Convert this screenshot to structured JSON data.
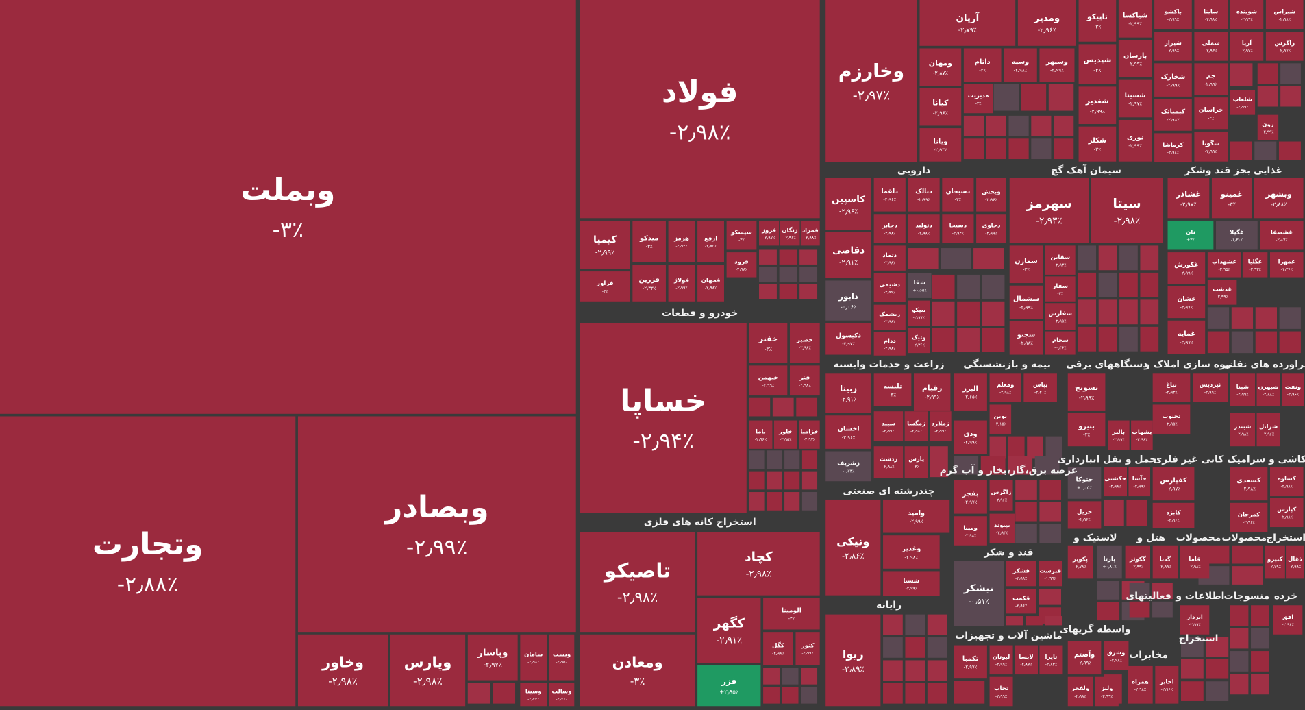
{
  "tile_color": "#9b2a3e",
  "filler_colors": [
    "#9b2a3e",
    "#a03045",
    "#5a4852"
  ],
  "sectors": [
    "خودرو و قطعات",
    "استخراج کانه های فلزی",
    "دارویی",
    "سیمان آهک گچ",
    "غذایی بجز قند وشکر",
    "زراعت و خدمات وابسته",
    "بیمه و بازنشستگی",
    "دستگاههای برقی",
    "انبوه سازی املاک و",
    "فراورده های نفتی",
    "عرضه برق،گاز،بخار و آب گرم",
    "حمل و نقل انبارداری",
    "کانی غیر فلزی",
    "کاشی و سرامیک",
    "چندرشته ای صنعتی",
    "قند و شکر",
    "لاستیک و",
    "هتل و",
    "محصولات",
    "محصولات",
    "استخراج",
    "رایانه",
    "فعالیتهای",
    "اطلاعات و",
    "منسوجات",
    "خرده",
    "واسطه گریهای",
    "ماشین آلات و تجهیزات",
    "استخراج",
    "مخابرات"
  ],
  "stocks": [
    {
      "name": "وبملت",
      "change": "-۳٪"
    },
    {
      "name": "وتجارت",
      "change": "-۲٫۸۸٪"
    },
    {
      "name": "وبصادر",
      "change": "-۲٫۹۹٪"
    },
    {
      "name": "وخاور",
      "change": "-۲٫۹۸٪"
    },
    {
      "name": "وپارس",
      "change": "-۲٫۹۸٪"
    },
    {
      "name": "وپاسار",
      "change": "-۲٫۹۷٪"
    },
    {
      "name": "سامان",
      "change": "-۲٫۹۸٪"
    },
    {
      "name": "ویست",
      "change": "-۲٫۹۵٪"
    },
    {
      "name": "وسینا",
      "change": "-۲٫۷۴٪"
    },
    {
      "name": "وسالت",
      "change": "-۲٫۷۶٪"
    },
    {
      "name": "فولاد",
      "change": "-۲٫۹۸٪"
    },
    {
      "name": "کیمیا",
      "change": "-۲٫۹۹٪"
    },
    {
      "name": "فرآور",
      "change": "-۳٪"
    },
    {
      "name": "میدکو",
      "change": "-۳٪"
    },
    {
      "name": "فزرین",
      "change": "-۲٫۳۳٪"
    },
    {
      "name": "هرمز",
      "change": "-۲٫۹۴٪"
    },
    {
      "name": "فولاژ",
      "change": "-۲٫۹۹٪"
    },
    {
      "name": "ارفع",
      "change": "-۲٫۷۵٪"
    },
    {
      "name": "فجهان",
      "change": "-۲٫۹۸٪"
    },
    {
      "name": "سیسکو",
      "change": "-۳٪"
    },
    {
      "name": "فرود",
      "change": "-۲٫۹۸٪"
    },
    {
      "name": "فروز",
      "change": "-۲٫۹۷٪"
    },
    {
      "name": "زنگان",
      "change": "-۲٫۹۶٪"
    },
    {
      "name": "فمراد",
      "change": "-۲٫۹۸٪"
    },
    {
      "name": "خساپا",
      "change": "-۲٫۹۴٪"
    },
    {
      "name": "خفنر",
      "change": "-۳٪"
    },
    {
      "name": "خصیر",
      "change": "-۲٫۹۸٪"
    },
    {
      "name": "خبهمن",
      "change": "-۲٫۹۹٪"
    },
    {
      "name": "فنر",
      "change": "-۲٫۹۸٪"
    },
    {
      "name": "ناما",
      "change": "-۲٫۹۶٪"
    },
    {
      "name": "خاور",
      "change": "-۲٫۹۵٪"
    },
    {
      "name": "خزامیا",
      "change": "-۲٫۹۷٪"
    },
    {
      "name": "تاصیکو",
      "change": "-۲٫۹۸٪"
    },
    {
      "name": "ومعادن",
      "change": "-۳٪"
    },
    {
      "name": "کچاد",
      "change": "-۲٫۹۸٪"
    },
    {
      "name": "کگهر",
      "change": "-۲٫۹۱٪"
    },
    {
      "name": "فزر",
      "change": "+۲٫۹۵٪",
      "color": "#1f9a62"
    },
    {
      "name": "آلومینا",
      "change": "-۳٪"
    },
    {
      "name": "کگل",
      "change": "-۲٫۹۸٪"
    },
    {
      "name": "کنور",
      "change": "-۲٫۹۹٪"
    },
    {
      "name": "وخارزم",
      "change": "-۲٫۹۷٪"
    },
    {
      "name": "آریان",
      "change": "-۲٫۷۹٪"
    },
    {
      "name": "ومدیر",
      "change": "-۲٫۹۶٪"
    },
    {
      "name": "ومهان",
      "change": "-۲٫۸۷٪"
    },
    {
      "name": "داتام",
      "change": "-۳٪"
    },
    {
      "name": "وسپه",
      "change": "-۲٫۹۸٪"
    },
    {
      "name": "وسپهر",
      "change": "-۲٫۹۹٪"
    },
    {
      "name": "کیانا",
      "change": "-۲٫۹۶٪"
    },
    {
      "name": "مدیریت",
      "change": "-۳٪"
    },
    {
      "name": "ویانا",
      "change": "-۲٫۹۳٪"
    },
    {
      "name": "تاپیکو",
      "change": "-۳٪"
    },
    {
      "name": "شپاکسا",
      "change": "-۲٫۹۹٪"
    },
    {
      "name": "شپدیس",
      "change": "-۳٪"
    },
    {
      "name": "پارسان",
      "change": "-۲٫۹۹٪"
    },
    {
      "name": "شغدیر",
      "change": "-۲٫۹۹٪"
    },
    {
      "name": "شسینا",
      "change": "-۲٫۹۷٪"
    },
    {
      "name": "شکلر",
      "change": "-۳٪"
    },
    {
      "name": "نوری",
      "change": "-۲٫۹۹٪"
    },
    {
      "name": "پاکشو",
      "change": "-۲٫۹۹٪"
    },
    {
      "name": "ساینا",
      "change": "-۲٫۹۸٪"
    },
    {
      "name": "شوینده",
      "change": "-۲٫۹۹٪"
    },
    {
      "name": "شیراس",
      "change": "-۲٫۹۸٪"
    },
    {
      "name": "شیراز",
      "change": "-۲٫۹۹٪"
    },
    {
      "name": "شملی",
      "change": "-۲٫۹۳٪"
    },
    {
      "name": "آریا",
      "change": "-۲٫۹۷٪"
    },
    {
      "name": "زاگرس",
      "change": "-۲٫۹۷٪"
    },
    {
      "name": "شخارک",
      "change": "-۲٫۹۹٪"
    },
    {
      "name": "جم",
      "change": "-۲٫۹۹٪"
    },
    {
      "name": "کیمیاتک",
      "change": "-۲٫۹۸٪"
    },
    {
      "name": "خراسان",
      "change": "-۳٪"
    },
    {
      "name": "شلعاب",
      "change": "-۲٫۹۹٪"
    },
    {
      "name": "کرماشا",
      "change": "-۲٫۹۸٪"
    },
    {
      "name": "شگویا",
      "change": "-۲٫۹۹٪"
    },
    {
      "name": "رون",
      "change": "-۲٫۹۹٪"
    },
    {
      "name": "کاسپین",
      "change": "-۲٫۹۶٪"
    },
    {
      "name": "دلقما",
      "change": "-۲٫۹۶٪"
    },
    {
      "name": "دبالک",
      "change": "-۲٫۹۹٪"
    },
    {
      "name": "دسبحان",
      "change": "-۳٪"
    },
    {
      "name": "وپخش",
      "change": "-۲٫۹۶٪"
    },
    {
      "name": "دقاضی",
      "change": "-۲٫۹۱٪"
    },
    {
      "name": "دجابر",
      "change": "-۲٫۹۸٪"
    },
    {
      "name": "دتولید",
      "change": "-۲٫۹۸٪"
    },
    {
      "name": "دسبحا",
      "change": "-۲٫۹۴٪"
    },
    {
      "name": "دحاوی",
      "change": "-۲٫۹۹٪"
    },
    {
      "name": "دتماد",
      "change": "-۲٫۹۸٪"
    },
    {
      "name": "دشیمی",
      "change": "-۲٫۹۹٪"
    },
    {
      "name": "شفا",
      "change": "+۰٫۶۵٪",
      "color": "#5a4852"
    },
    {
      "name": "دابور",
      "change": "-۰٫۰۶٪",
      "color": "#5a4852"
    },
    {
      "name": "ریشمک",
      "change": "-۲٫۹۸٪"
    },
    {
      "name": "دکیسول",
      "change": "-۲٫۹۷٪"
    },
    {
      "name": "ددام",
      "change": "-۲٫۹۸٪"
    },
    {
      "name": "بیپکو",
      "change": "-۲٫۹۷٪"
    },
    {
      "name": "وتیک",
      "change": "-۲٫۳۶٪"
    },
    {
      "name": "سهرمز",
      "change": "-۲٫۹۳٪"
    },
    {
      "name": "سیتا",
      "change": "-۲٫۹۸٪"
    },
    {
      "name": "سمازن",
      "change": "-۳٪"
    },
    {
      "name": "سقاین",
      "change": "-۲٫۹۳٪"
    },
    {
      "name": "سفار",
      "change": "-۳٪"
    },
    {
      "name": "سشمال",
      "change": "-۲٫۹۹٪"
    },
    {
      "name": "سفارس",
      "change": "-۲٫۹۵٪"
    },
    {
      "name": "سجنو",
      "change": "-۲٫۹۸٪"
    },
    {
      "name": "سجام",
      "change": "-۰٫۴۶٪"
    },
    {
      "name": "غشاذر",
      "change": "-۲٫۹۷٪"
    },
    {
      "name": "غمینو",
      "change": "-۳٪"
    },
    {
      "name": "وبشهر",
      "change": "-۲٫۸۸٪"
    },
    {
      "name": "نان",
      "change": "+۳٪",
      "color": "#1f9a62"
    },
    {
      "name": "غگیلا",
      "change": "-۱٫۳۰٪",
      "color": "#5a4852"
    },
    {
      "name": "غشصفا",
      "change": "-۲٫۸۷٪"
    },
    {
      "name": "غکورش",
      "change": "-۲٫۹۹٪"
    },
    {
      "name": "غشهداب",
      "change": "-۲٫۹۵٪"
    },
    {
      "name": "غگلپا",
      "change": "-۲٫۹۳٪"
    },
    {
      "name": "غمهرا",
      "change": "-۱٫۳۶٪"
    },
    {
      "name": "غشان",
      "change": "-۲٫۹۷٪"
    },
    {
      "name": "غدشت",
      "change": "-۲٫۹۹٪"
    },
    {
      "name": "غمایه",
      "change": "-۲٫۹۷٪"
    },
    {
      "name": "زبینا",
      "change": "-۲٫۹۱٪"
    },
    {
      "name": "تلیسه",
      "change": "-۳٪"
    },
    {
      "name": "زقیام",
      "change": "-۲٫۹۹٪"
    },
    {
      "name": "اخشان",
      "change": "-۲٫۹۶٪"
    },
    {
      "name": "سپید",
      "change": "-۲٫۹۹٪"
    },
    {
      "name": "زمگسا",
      "change": "-۲٫۹۸٪"
    },
    {
      "name": "زملارد",
      "change": "-۲٫۹۹٪"
    },
    {
      "name": "زشریف",
      "change": "-۰٫۷۳٪",
      "color": "#5a4852"
    },
    {
      "name": "زدشت",
      "change": "-۲٫۹۸٪"
    },
    {
      "name": "پارس",
      "change": "-۳٪"
    },
    {
      "name": "البرز",
      "change": "-۲٫۶۵٪"
    },
    {
      "name": "ومعلم",
      "change": "-۲٫۹۸٪"
    },
    {
      "name": "بپاس",
      "change": "-۲٫۴۰٪"
    },
    {
      "name": "نوین",
      "change": "-۲٫۱۵٪"
    },
    {
      "name": "ودی",
      "change": "-۲٫۹۹٪"
    },
    {
      "name": "بفجر",
      "change": "-۲٫۹۷٪"
    },
    {
      "name": "زاگرس",
      "change": "-۲٫۹۶٪"
    },
    {
      "name": "ومپنا",
      "change": "-۲٫۹۸٪"
    },
    {
      "name": "بپیوند",
      "change": "-۲٫۹۴٪"
    },
    {
      "name": "نیشکر",
      "change": "-۰٫۵۱٪",
      "color": "#5a4852"
    },
    {
      "name": "قشکر",
      "change": "-۲٫۹۸٪"
    },
    {
      "name": "قبرست",
      "change": "-۱٫۹۹٪"
    },
    {
      "name": "قکمت",
      "change": "-۲٫۹۶٪"
    },
    {
      "name": "تکمبا",
      "change": "-۲٫۹۷٪"
    },
    {
      "name": "لبوتان",
      "change": "-۲٫۹۹٪"
    },
    {
      "name": "لابسا",
      "change": "-۲٫۸۷٪"
    },
    {
      "name": "تایرا",
      "change": "-۲٫۸۳٪"
    },
    {
      "name": "تخاب",
      "change": "-۲٫۹۹٪"
    },
    {
      "name": "بسویچ",
      "change": "-۲٫۹۹٪"
    },
    {
      "name": "بنیرو",
      "change": "-۳٪"
    },
    {
      "name": "بالبر",
      "change": "-۲٫۹۹٪"
    },
    {
      "name": "بشهاب",
      "change": "-۲٫۹۸٪"
    },
    {
      "name": "حتوکا",
      "change": "+۰٫۰۵٪",
      "color": "#5a4852"
    },
    {
      "name": "حکشتی",
      "change": "-۲٫۹۸٪"
    },
    {
      "name": "حآسا",
      "change": "-۲٫۹۹٪"
    },
    {
      "name": "حریل",
      "change": "-۲٫۹۶٪"
    },
    {
      "name": "پکویر",
      "change": "-۲٫۷۸٪"
    },
    {
      "name": "پارتا",
      "change": "+۰٫۸۱٪",
      "color": "#5a4852"
    },
    {
      "name": "گکوثر",
      "change": "-۲٫۹۹٪"
    },
    {
      "name": "گدنا",
      "change": "-۲٫۹۹٪"
    },
    {
      "name": "قاما",
      "change": "-۲٫۹۸٪"
    },
    {
      "name": "کبیرو",
      "change": "-۲٫۷۹٪"
    },
    {
      "name": "ذغال",
      "change": "-۲٫۹۹٪"
    },
    {
      "name": "ابرداز",
      "change": "-۲٫۹۹٪"
    },
    {
      "name": "افق",
      "change": "-۲٫۹۸٪"
    },
    {
      "name": "وآصتم",
      "change": "-۲٫۹۹٪"
    },
    {
      "name": "وشرق",
      "change": "-۲٫۹۸٪"
    },
    {
      "name": "ولفجر",
      "change": "-۲٫۹۸٪"
    },
    {
      "name": "ولیز",
      "change": "-۲٫۹۹٪"
    },
    {
      "name": "همراه",
      "change": "-۲٫۹۸٪"
    },
    {
      "name": "اخابر",
      "change": "-۲٫۹۶٪"
    },
    {
      "name": "کسعدی",
      "change": "-۲٫۹۸٪"
    },
    {
      "name": "کساوه",
      "change": "-۲٫۹۸٪"
    },
    {
      "name": "کمرجان",
      "change": "-۲٫۹۶٪"
    },
    {
      "name": "کپارس",
      "change": "-۲٫۹۸٪"
    },
    {
      "name": "کفپارس",
      "change": "-۲٫۹۷٪"
    },
    {
      "name": "کایزد",
      "change": "-۲٫۹۶٪"
    },
    {
      "name": "ثباغ",
      "change": "-۲٫۹۳٪"
    },
    {
      "name": "ثپردیس",
      "change": "-۲٫۹۹٪"
    },
    {
      "name": "ثجنوب",
      "change": "-۲٫۹۵٪"
    },
    {
      "name": "شپنا",
      "change": "-۲٫۹۹٪"
    },
    {
      "name": "شبهرن",
      "change": "-۲٫۸۸٪"
    },
    {
      "name": "ونفت",
      "change": "-۲٫۹۶٪"
    },
    {
      "name": "شبندر",
      "change": "-۲٫۹۸٪"
    },
    {
      "name": "شرانل",
      "change": "-۲٫۹۶٪"
    },
    {
      "name": "ونیکی",
      "change": "-۲٫۸۶٪"
    },
    {
      "name": "وامید",
      "change": "-۲٫۹۹٪"
    },
    {
      "name": "وغدیر",
      "change": "-۲٫۹۸٪"
    },
    {
      "name": "شستا",
      "change": "-۲٫۹۹٪"
    },
    {
      "name": "ریوا",
      "change": "-۲٫۸۹٪"
    }
  ]
}
